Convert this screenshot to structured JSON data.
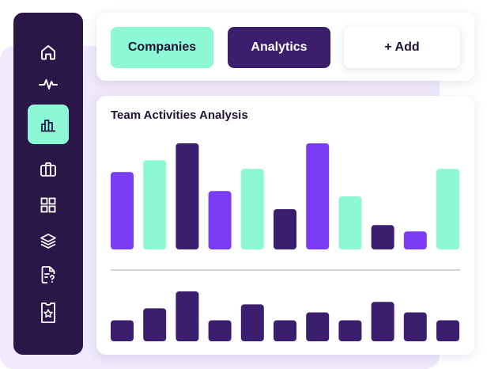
{
  "sidebar": {
    "items": [
      {
        "icon": "home-icon",
        "active": false
      },
      {
        "icon": "pulse-icon",
        "active": false
      },
      {
        "icon": "bar-chart-icon",
        "active": true
      },
      {
        "icon": "briefcase-icon",
        "active": false
      },
      {
        "icon": "grid-icon",
        "active": false
      },
      {
        "icon": "layers-icon",
        "active": false
      },
      {
        "icon": "document-question-icon",
        "active": false
      },
      {
        "icon": "ticket-star-icon",
        "active": false
      }
    ]
  },
  "toolbar": {
    "companies_label": "Companies",
    "analytics_label": "Analytics",
    "add_label": "+ Add"
  },
  "colors": {
    "sidebar_bg": "#2a1748",
    "accent_mint": "#8cf8d6",
    "accent_purple": "#7b3cf5",
    "dark_purple": "#3b1f6e",
    "backdrop": "#efe9fb"
  },
  "chart_data": {
    "type": "bar",
    "title": "Team Activities Analysis",
    "xlabel": "",
    "ylabel": "",
    "grid": false,
    "upper": {
      "values": [
        73,
        84,
        100,
        55,
        76,
        38,
        100,
        50,
        23,
        17,
        76
      ],
      "colors": [
        "purple",
        "mint",
        "dark",
        "purple",
        "mint",
        "dark",
        "purple",
        "mint",
        "dark",
        "purple",
        "mint"
      ],
      "ylim": [
        0,
        100
      ]
    },
    "lower": {
      "values": [
        42,
        66,
        100,
        42,
        74,
        42,
        58,
        42,
        79,
        58,
        42
      ],
      "colors": [
        "dark",
        "dark",
        "dark",
        "dark",
        "dark",
        "dark",
        "dark",
        "dark",
        "dark",
        "dark",
        "dark"
      ],
      "ylim": [
        0,
        100
      ]
    }
  }
}
